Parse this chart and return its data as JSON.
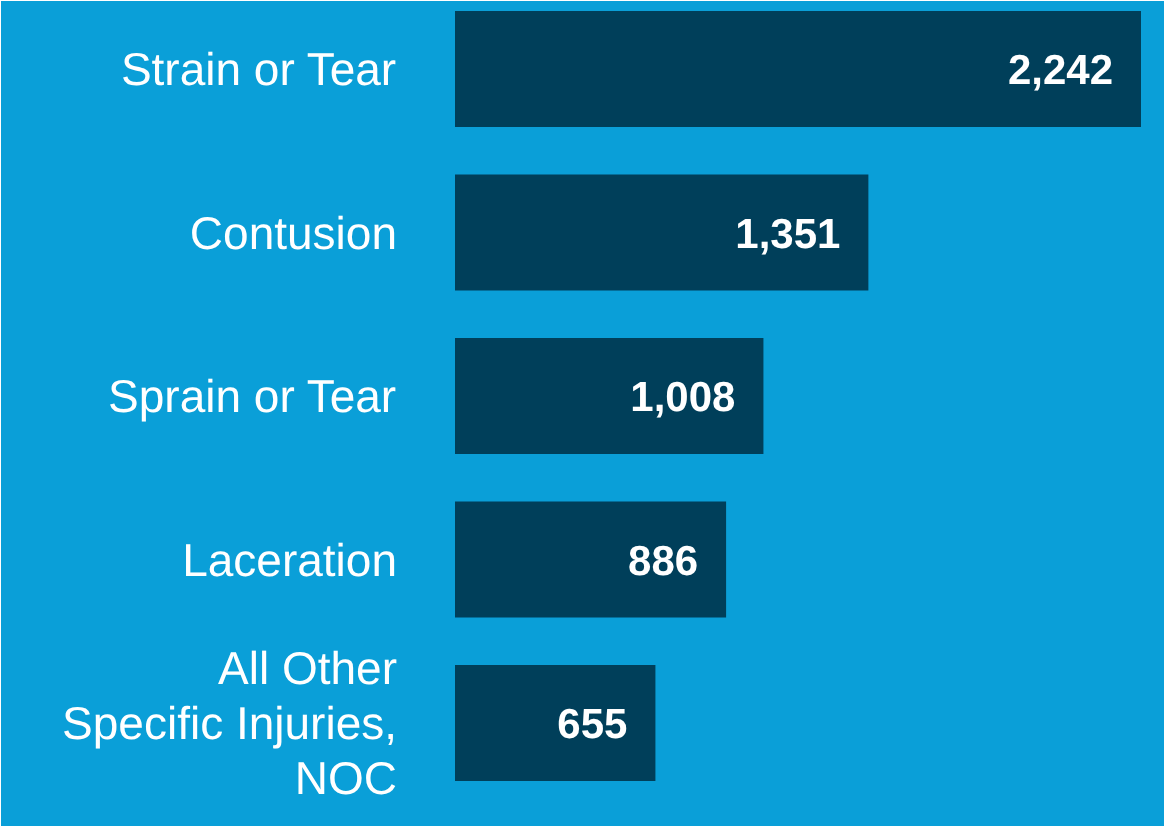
{
  "chart_data": {
    "type": "bar",
    "orientation": "horizontal",
    "categories": [
      "Strain or Tear",
      "Contusion",
      "Sprain or Tear",
      "Laceration",
      "All Other\nSpecific Injuries,\nNOC"
    ],
    "values": [
      2242,
      1351,
      1008,
      886,
      655
    ],
    "value_labels": [
      "2,242",
      "1,351",
      "1,008",
      "886",
      "655"
    ],
    "color": "#003f5a"
  }
}
